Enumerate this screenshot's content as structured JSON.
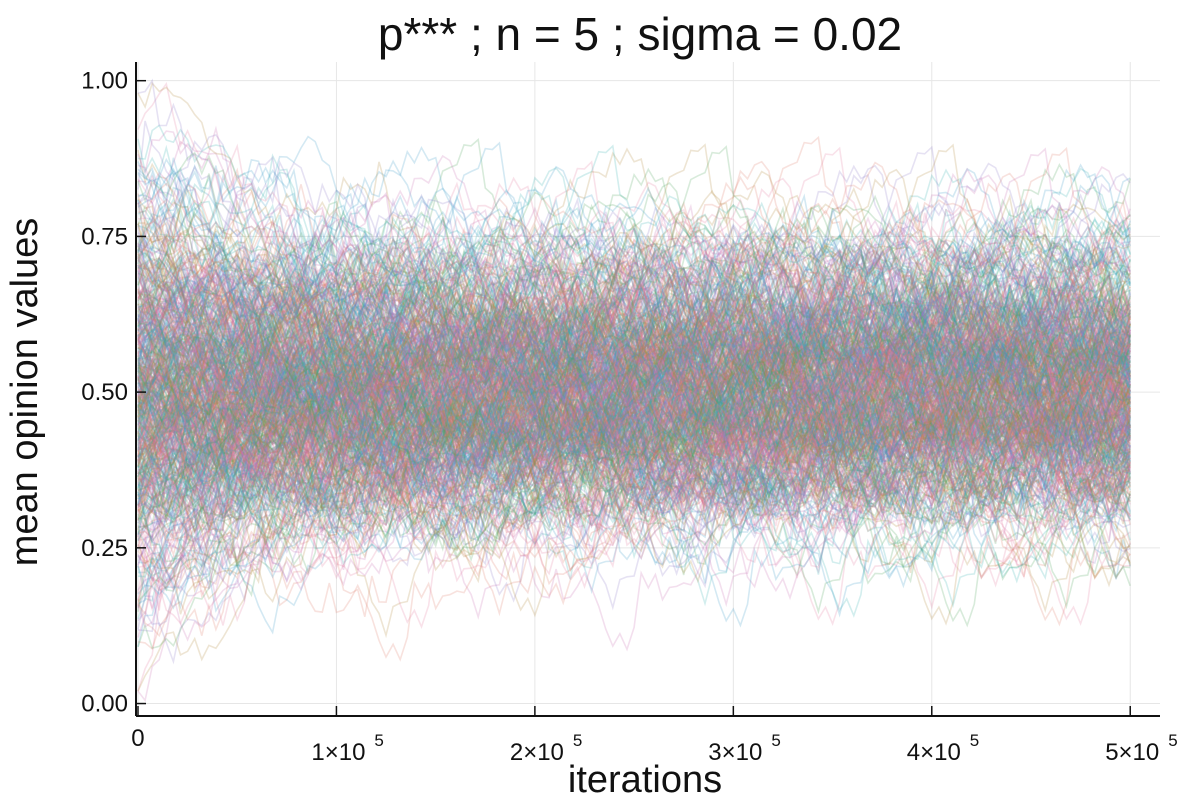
{
  "chart_data": {
    "type": "line",
    "title": "p***  ; n = 5 ; sigma = 0.02",
    "xlabel": "iterations",
    "ylabel": "mean opinion values",
    "xlim": [
      -1000,
      515000
    ],
    "ylim": [
      -0.02,
      1.03
    ],
    "x_ticks": [
      {
        "value": 0,
        "mantissa": "0",
        "exponent": ""
      },
      {
        "value": 100000,
        "mantissa": "1×10",
        "exponent": "5"
      },
      {
        "value": 200000,
        "mantissa": "2×10",
        "exponent": "5"
      },
      {
        "value": 300000,
        "mantissa": "3×10",
        "exponent": "5"
      },
      {
        "value": 400000,
        "mantissa": "4×10",
        "exponent": "5"
      },
      {
        "value": 500000,
        "mantissa": "5×10",
        "exponent": "5"
      }
    ],
    "y_ticks": [
      {
        "value": 0.0,
        "label": "0.00"
      },
      {
        "value": 0.25,
        "label": "0.25"
      },
      {
        "value": 0.5,
        "label": "0.50"
      },
      {
        "value": 0.75,
        "label": "0.75"
      },
      {
        "value": 1.0,
        "label": "1.00"
      }
    ],
    "grid": true,
    "legend": "none",
    "x_range": [
      0,
      500000
    ],
    "series_count": 600,
    "series_colors": [
      "#3a9bc8",
      "#e0796b",
      "#4fa35a",
      "#c86fb0",
      "#b08a3a",
      "#38b3b0",
      "#8f7ac9",
      "#e27ba0"
    ],
    "series_opacity": 0.22,
    "distribution": {
      "center": 0.5,
      "typical_band": [
        0.2,
        0.8
      ],
      "envelope": [
        0.0,
        1.0
      ]
    }
  }
}
